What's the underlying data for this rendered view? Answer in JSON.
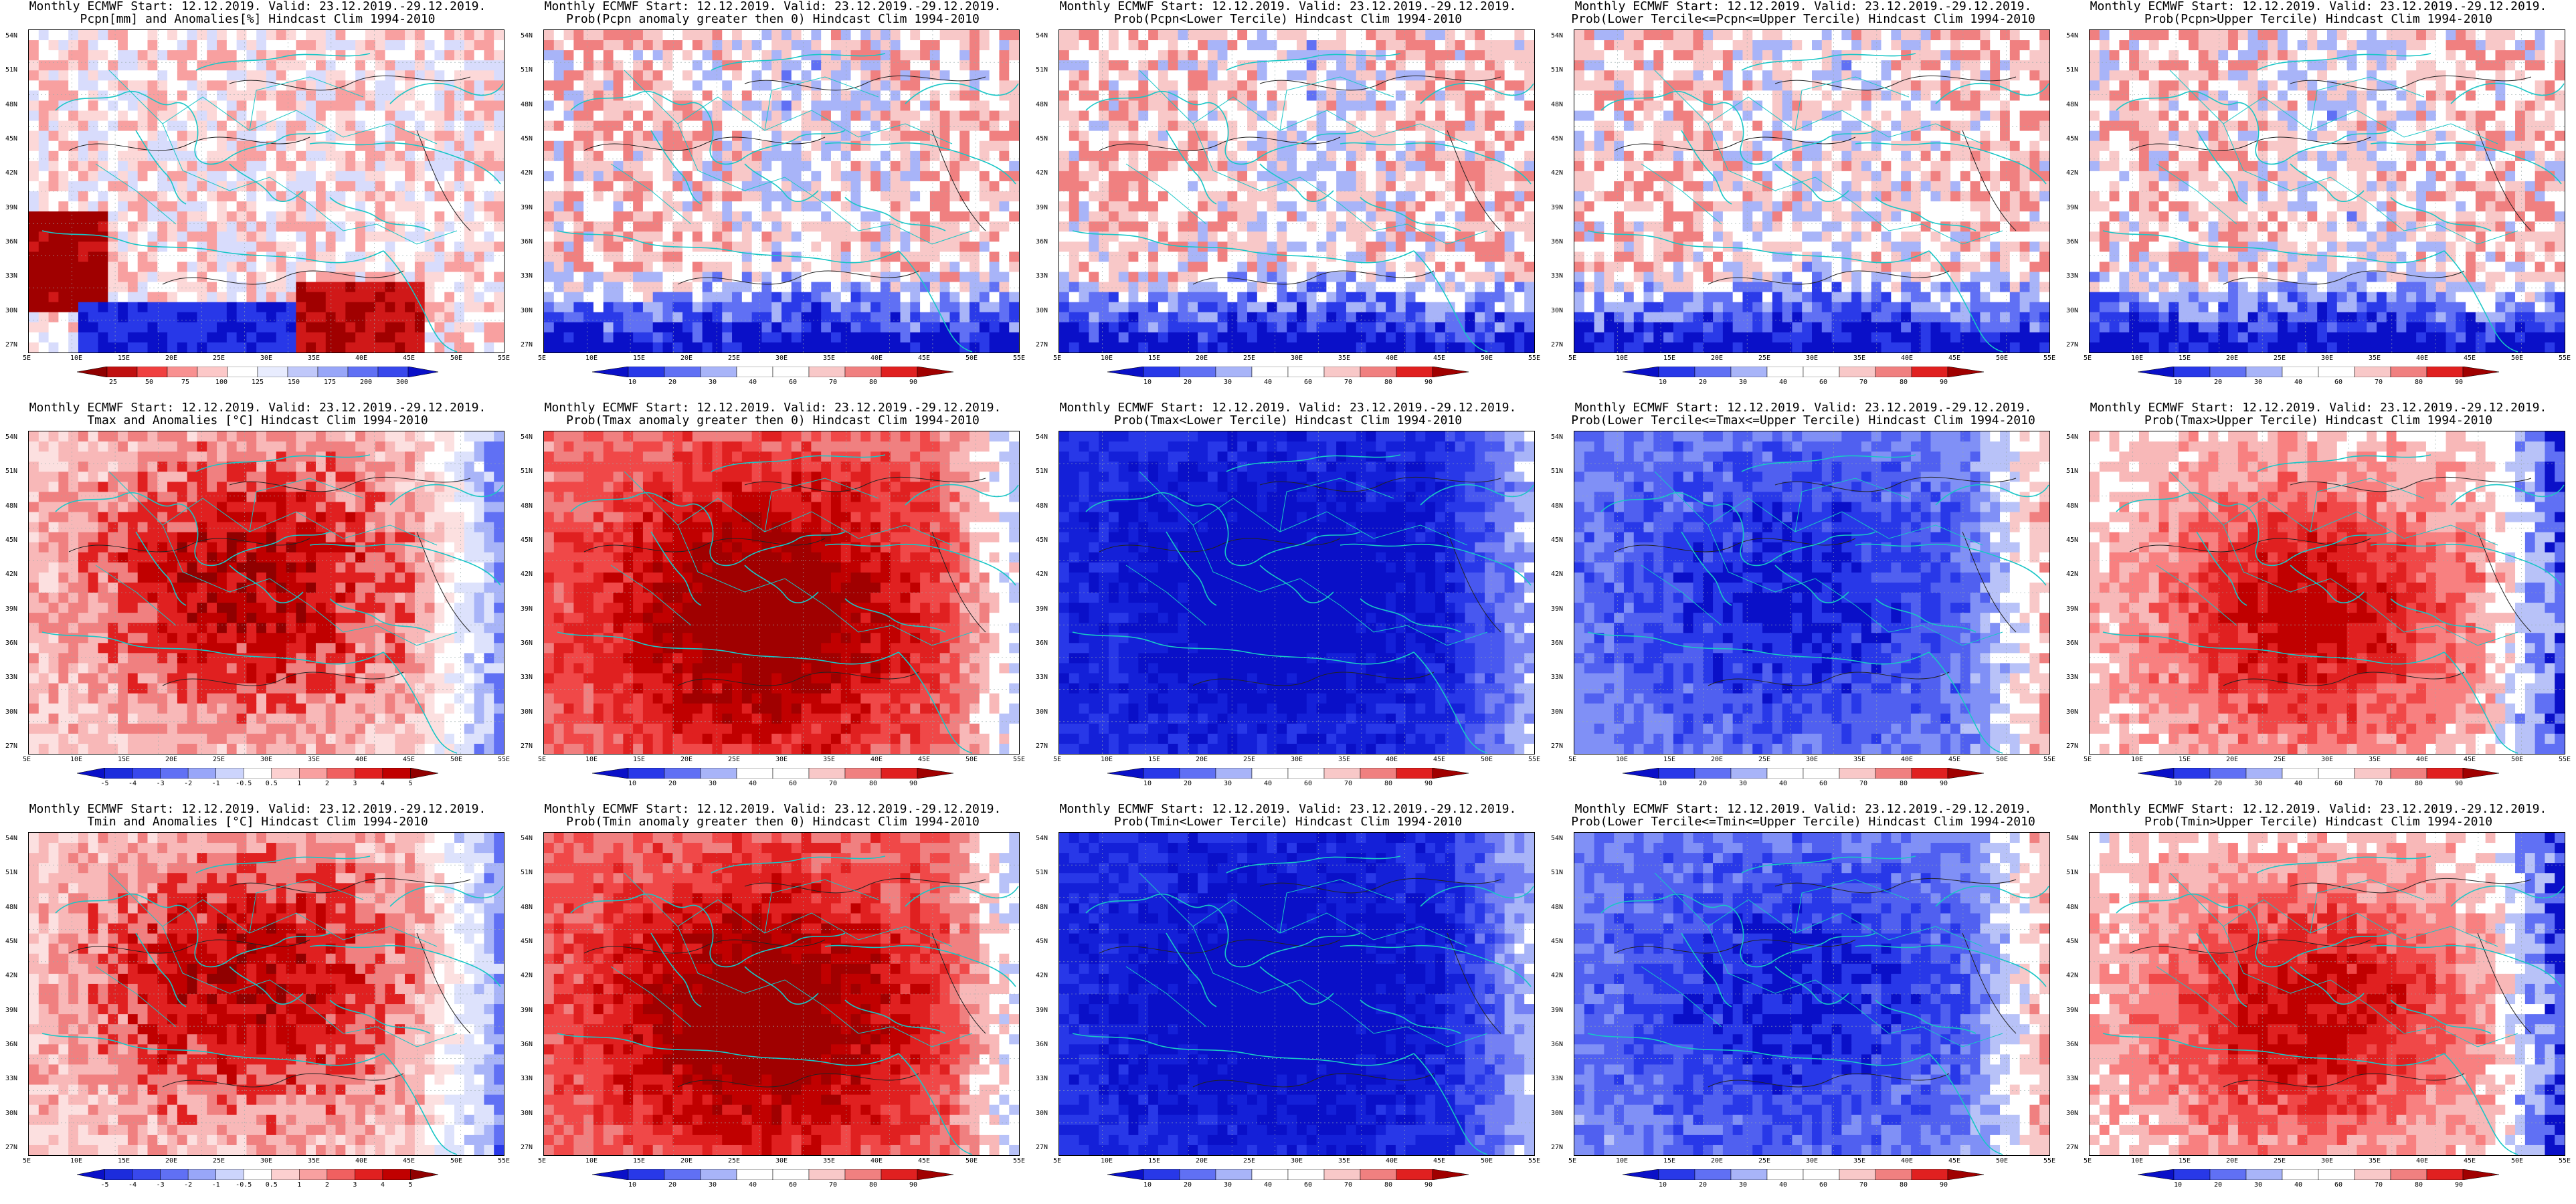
{
  "panels": [
    {
      "id": "p00",
      "row": 0,
      "col": 0,
      "title1": "Monthly ECMWF Start: 12.12.2019. Valid: 23.12.2019.-29.12.2019.",
      "title2": "Pcpn[mm] and Anomalies[%] Hindcast Clim 1994-2010",
      "palette": "anom",
      "cbar": {
        "labels": [
          "25",
          "50",
          "75",
          "100",
          "125",
          "150",
          "175",
          "200",
          "300"
        ]
      }
    },
    {
      "id": "p01",
      "row": 0,
      "col": 1,
      "title1": "Monthly ECMWF Start: 12.12.2019. Valid: 23.12.2019.-29.12.2019.",
      "title2": "Prob(Pcpn anomaly greater then 0) Hindcast Clim 1994-2010",
      "palette": "prob",
      "cbar": {
        "labels": [
          "10",
          "20",
          "30",
          "40",
          "60",
          "70",
          "80",
          "90"
        ]
      }
    },
    {
      "id": "p02",
      "row": 0,
      "col": 2,
      "title1": "Monthly ECMWF Start: 12.12.2019. Valid: 23.12.2019.-29.12.2019.",
      "title2": "Prob(Pcpn<Lower Tercile) Hindcast Clim 1994-2010",
      "palette": "prob",
      "cbar": {
        "labels": [
          "10",
          "20",
          "30",
          "40",
          "60",
          "70",
          "80",
          "90"
        ]
      }
    },
    {
      "id": "p03",
      "row": 0,
      "col": 3,
      "title1": "Monthly ECMWF Start: 12.12.2019. Valid: 23.12.2019.-29.12.2019.",
      "title2": "Prob(Lower Tercile<=Pcpn<=Upper Tercile) Hindcast Clim 1994-2010",
      "palette": "prob",
      "cbar": {
        "labels": [
          "10",
          "20",
          "30",
          "40",
          "60",
          "70",
          "80",
          "90"
        ]
      }
    },
    {
      "id": "p04",
      "row": 0,
      "col": 4,
      "title1": "Monthly ECMWF Start: 12.12.2019. Valid: 23.12.2019.-29.12.2019.",
      "title2": "Prob(Pcpn>Upper Tercile) Hindcast Clim 1994-2010",
      "palette": "prob",
      "cbar": {
        "labels": [
          "10",
          "20",
          "30",
          "40",
          "60",
          "70",
          "80",
          "90"
        ]
      }
    },
    {
      "id": "p10",
      "row": 1,
      "col": 0,
      "title1": "Monthly ECMWF Start: 12.12.2019. Valid: 23.12.2019.-29.12.2019.",
      "title2": "Tmax and Anomalies [°C] Hindcast Clim 1994-2010",
      "palette": "temp",
      "cbar": {
        "labels": [
          "-5",
          "-4",
          "-3",
          "-2",
          "-1",
          "-0.5",
          "0.5",
          "1",
          "2",
          "3",
          "4",
          "5"
        ]
      }
    },
    {
      "id": "p11",
      "row": 1,
      "col": 1,
      "title1": "Monthly ECMWF Start: 12.12.2019. Valid: 23.12.2019.-29.12.2019.",
      "title2": "Prob(Tmax anomaly greater then 0) Hindcast Clim 1994-2010",
      "palette": "hot",
      "cbar": {
        "labels": [
          "10",
          "20",
          "30",
          "40",
          "60",
          "70",
          "80",
          "90"
        ]
      }
    },
    {
      "id": "p12",
      "row": 1,
      "col": 2,
      "title1": "Monthly ECMWF Start: 12.12.2019. Valid: 23.12.2019.-29.12.2019.",
      "title2": "Prob(Tmax<Lower Tercile) Hindcast Clim 1994-2010",
      "palette": "cold",
      "cbar": {
        "labels": [
          "10",
          "20",
          "30",
          "40",
          "60",
          "70",
          "80",
          "90"
        ]
      }
    },
    {
      "id": "p13",
      "row": 1,
      "col": 3,
      "title1": "Monthly ECMWF Start: 12.12.2019. Valid: 23.12.2019.-29.12.2019.",
      "title2": "Prob(Lower Tercile<=Tmax<=Upper Tercile) Hindcast Clim 1994-2010",
      "palette": "cold2",
      "cbar": {
        "labels": [
          "10",
          "20",
          "30",
          "40",
          "60",
          "70",
          "80",
          "90"
        ]
      }
    },
    {
      "id": "p14",
      "row": 1,
      "col": 4,
      "title1": "Monthly ECMWF Start: 12.12.2019. Valid: 23.12.2019.-29.12.2019.",
      "title2": "Prob(Tmax>Upper Tercile) Hindcast Clim 1994-2010",
      "palette": "hot2",
      "cbar": {
        "labels": [
          "10",
          "20",
          "30",
          "40",
          "60",
          "70",
          "80",
          "90"
        ]
      }
    },
    {
      "id": "p20",
      "row": 2,
      "col": 0,
      "title1": "Monthly ECMWF Start: 12.12.2019. Valid: 23.12.2019.-29.12.2019.",
      "title2": "Tmin and Anomalies [°C] Hindcast Clim 1994-2010",
      "palette": "temp",
      "cbar": {
        "labels": [
          "-5",
          "-4",
          "-3",
          "-2",
          "-1",
          "-0.5",
          "0.5",
          "1",
          "2",
          "3",
          "4",
          "5"
        ]
      }
    },
    {
      "id": "p21",
      "row": 2,
      "col": 1,
      "title1": "Monthly ECMWF Start: 12.12.2019. Valid: 23.12.2019.-29.12.2019.",
      "title2": "Prob(Tmin anomaly greater then 0) Hindcast Clim 1994-2010",
      "palette": "hot",
      "cbar": {
        "labels": [
          "10",
          "20",
          "30",
          "40",
          "60",
          "70",
          "80",
          "90"
        ]
      }
    },
    {
      "id": "p22",
      "row": 2,
      "col": 2,
      "title1": "Monthly ECMWF Start: 12.12.2019. Valid: 23.12.2019.-29.12.2019.",
      "title2": "Prob(Tmin<Lower Tercile) Hindcast Clim 1994-2010",
      "palette": "cold",
      "cbar": {
        "labels": [
          "10",
          "20",
          "30",
          "40",
          "60",
          "70",
          "80",
          "90"
        ]
      }
    },
    {
      "id": "p23",
      "row": 2,
      "col": 3,
      "title1": "Monthly ECMWF Start: 12.12.2019. Valid: 23.12.2019.-29.12.2019.",
      "title2": "Prob(Lower Tercile<=Tmin<=Upper Tercile) Hindcast Clim 1994-2010",
      "palette": "cold2",
      "cbar": {
        "labels": [
          "10",
          "20",
          "30",
          "40",
          "60",
          "70",
          "80",
          "90"
        ]
      }
    },
    {
      "id": "p24",
      "row": 2,
      "col": 4,
      "title1": "Monthly ECMWF Start: 12.12.2019. Valid: 23.12.2019.-29.12.2019.",
      "title2": "Prob(Tmin>Upper Tercile) Hindcast Clim 1994-2010",
      "palette": "hot2",
      "cbar": {
        "labels": [
          "10",
          "20",
          "30",
          "40",
          "60",
          "70",
          "80",
          "90"
        ]
      }
    }
  ],
  "axes": {
    "lat_labels": [
      "54N",
      "51N",
      "48N",
      "45N",
      "42N",
      "39N",
      "36N",
      "33N",
      "30N",
      "27N"
    ],
    "lon_labels": [
      "5E",
      "10E",
      "15E",
      "20E",
      "25E",
      "30E",
      "35E",
      "40E",
      "45E",
      "50E",
      "55E"
    ]
  },
  "colors": {
    "coast": "#19c6c6",
    "dark_blue": "#0a10c8",
    "mid_blue": "#4858f0",
    "light_blue": "#b8c2f8",
    "dark_red": "#b00000",
    "mid_red": "#ee2a2a",
    "light_red": "#f8b8b8"
  }
}
